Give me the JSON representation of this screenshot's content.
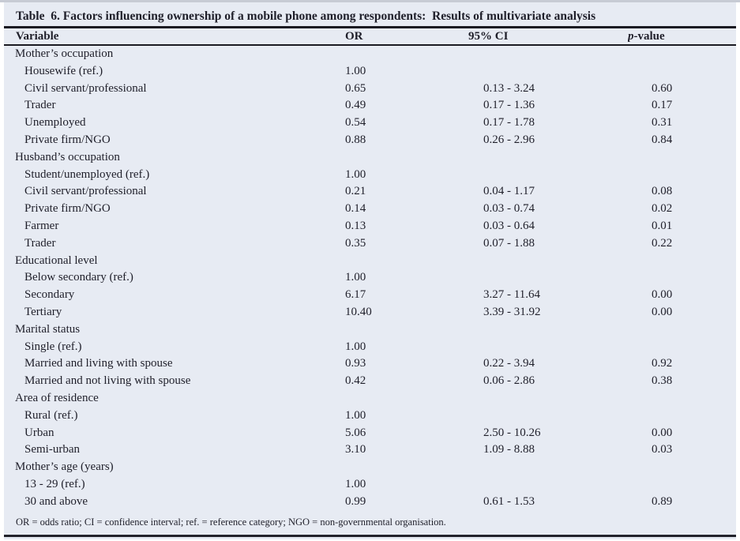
{
  "title": "Table  6. Factors influencing ownership of a mobile phone among respondents:  Results of multivariate analysis",
  "header": {
    "variable": "Variable",
    "or": "OR",
    "ci": "95% CI",
    "p_italic": "p",
    "p_rest": "-value"
  },
  "sections": [
    {
      "group": "Mother’s occupation",
      "rows": [
        {
          "label": "Housewife (ref.)",
          "or": "1.00",
          "ci": "",
          "p": ""
        },
        {
          "label": "Civil servant/professional",
          "or": "0.65",
          "ci": "0.13 - 3.24",
          "p": "0.60"
        },
        {
          "label": "Trader",
          "or": "0.49",
          "ci": "0.17 - 1.36",
          "p": "0.17"
        },
        {
          "label": "Unemployed",
          "or": "0.54",
          "ci": "0.17 - 1.78",
          "p": "0.31"
        },
        {
          "label": "Private firm/NGO",
          "or": "0.88",
          "ci": "0.26 - 2.96",
          "p": "0.84"
        }
      ]
    },
    {
      "group": "Husband’s occupation",
      "rows": [
        {
          "label": "Student/unemployed (ref.)",
          "or": "1.00",
          "ci": "",
          "p": ""
        },
        {
          "label": "Civil servant/professional",
          "or": "0.21",
          "ci": "0.04 - 1.17",
          "p": "0.08"
        },
        {
          "label": "Private firm/NGO",
          "or": "0.14",
          "ci": "0.03 - 0.74",
          "p": "0.02"
        },
        {
          "label": "Farmer",
          "or": "0.13",
          "ci": "0.03 - 0.64",
          "p": "0.01"
        },
        {
          "label": "Trader",
          "or": "0.35",
          "ci": "0.07 - 1.88",
          "p": "0.22"
        }
      ]
    },
    {
      "group": "Educational level",
      "rows": [
        {
          "label": "Below secondary (ref.)",
          "or": "1.00",
          "ci": "",
          "p": ""
        },
        {
          "label": "Secondary",
          "or": "6.17",
          "ci": "3.27 - 11.64",
          "p": "0.00"
        },
        {
          "label": "Tertiary",
          "or": "10.40",
          "ci": "3.39 - 31.92",
          "p": "0.00"
        }
      ]
    },
    {
      "group": "Marital status",
      "rows": [
        {
          "label": "Single (ref.)",
          "or": "1.00",
          "ci": "",
          "p": ""
        },
        {
          "label": "Married and living with spouse",
          "or": "0.93",
          "ci": "0.22 - 3.94",
          "p": "0.92"
        },
        {
          "label": "Married and not living with spouse",
          "or": "0.42",
          "ci": "0.06 - 2.86",
          "p": "0.38"
        }
      ]
    },
    {
      "group": "Area of residence",
      "rows": [
        {
          "label": "Rural (ref.)",
          "or": "1.00",
          "ci": "",
          "p": ""
        },
        {
          "label": "Urban",
          "or": "5.06",
          "ci": "2.50 - 10.26",
          "p": "0.00"
        },
        {
          "label": "Semi-urban",
          "or": "3.10",
          "ci": "1.09 - 8.88",
          "p": "0.03"
        }
      ]
    },
    {
      "group": "Mother’s age (years)",
      "rows": [
        {
          "label": "13 - 29 (ref.)",
          "or": "1.00",
          "ci": "",
          "p": ""
        },
        {
          "label": "30 and above",
          "or": "0.99",
          "ci": "0.61 - 1.53",
          "p": "0.89"
        }
      ]
    }
  ],
  "footnote": "OR = odds ratio; CI = confidence interval; ref. = reference category; NGO = non-governmental organisation."
}
